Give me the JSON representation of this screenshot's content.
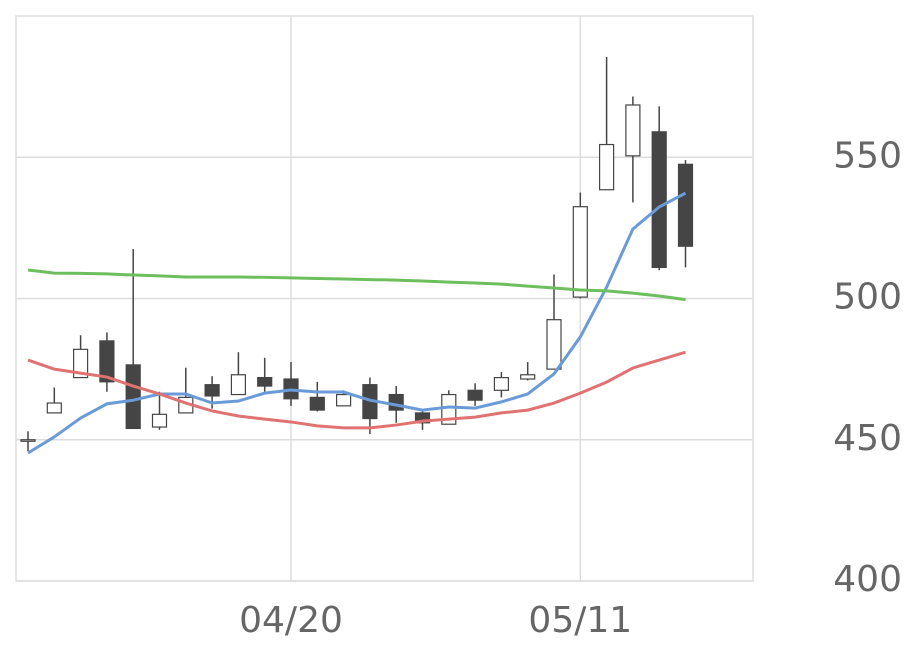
{
  "chart_data": {
    "type": "candlestick",
    "categories": [
      null,
      null,
      null,
      null,
      null,
      null,
      null,
      null,
      null,
      null,
      "04/20",
      null,
      null,
      null,
      null,
      null,
      null,
      null,
      null,
      null,
      null,
      "05/11",
      null,
      null,
      null,
      null
    ],
    "open": [
      449.5,
      459.5,
      472,
      485,
      476.5,
      454.5,
      459.5,
      469.5,
      466,
      472,
      471.5,
      465,
      462,
      469.5,
      466,
      459.5,
      455.5,
      467.5,
      467.5,
      471.5,
      475,
      500.5,
      538.5,
      550.5,
      559,
      547.5
    ],
    "high": [
      453,
      468.5,
      487,
      488,
      517.5,
      467,
      475.5,
      472.5,
      481,
      479,
      477.5,
      470.5,
      467.5,
      472,
      469,
      460,
      467.5,
      470,
      474,
      477.5,
      508.5,
      537.5,
      585.5,
      571.5,
      568,
      549
    ],
    "low": [
      446,
      459.5,
      472,
      467,
      454,
      453.5,
      459.5,
      461,
      466,
      467,
      462,
      460,
      462,
      452,
      456,
      453.5,
      455.5,
      462,
      465,
      471,
      475,
      500,
      538.5,
      534,
      510,
      511
    ],
    "close": [
      450,
      463,
      482,
      470.5,
      454,
      459,
      465,
      465.5,
      473,
      469,
      464.5,
      460.5,
      466,
      457.5,
      460.5,
      456,
      466,
      464,
      472,
      473,
      492.5,
      532.5,
      554.5,
      568.5,
      511,
      518.5
    ],
    "up_color": "#ffffff",
    "down_color": "#454545",
    "series": [
      {
        "color": "#6a9bd8",
        "values": [
          445.3,
          451,
          457.7,
          462.7,
          464,
          466.2,
          466.2,
          463,
          463.7,
          466.5,
          467.6,
          466.9,
          466.9,
          464,
          462.3,
          460.5,
          461.6,
          461.2,
          463.4,
          466.2,
          473.3,
          486.4,
          504,
          524.6,
          532.4,
          537.3
        ]
      },
      {
        "color": "#e07272",
        "values": [
          478.2,
          475,
          473.6,
          472.2,
          469,
          466.2,
          463,
          460.2,
          458.4,
          457.3,
          456.3,
          454.9,
          454.2,
          454.2,
          455.2,
          456.6,
          457.3,
          458,
          459.5,
          460.5,
          463,
          466.5,
          470.4,
          475.4,
          478.2,
          481
        ]
      },
      {
        "color": "#6cbf5c",
        "values": [
          510.1,
          509,
          508.9,
          508.7,
          508.3,
          508,
          507.6,
          507.6,
          507.6,
          507.5,
          507.3,
          507.1,
          506.9,
          506.7,
          506.5,
          506.2,
          505.8,
          505.5,
          505.1,
          504.4,
          503.7,
          503,
          502.7,
          501.9,
          500.9,
          499.6
        ]
      }
    ],
    "ylim": [
      400,
      600
    ],
    "yticks": [
      400,
      450,
      500,
      550
    ],
    "grid": true
  }
}
